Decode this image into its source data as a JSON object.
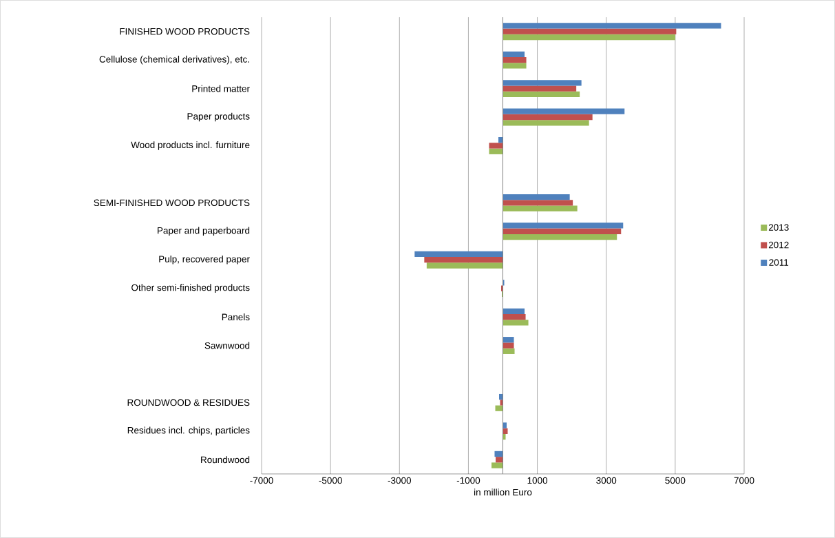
{
  "chart_data": {
    "type": "bar",
    "orientation": "horizontal",
    "xlabel": "in million Euro",
    "categories": [
      "FINISHED WOOD PRODUCTS",
      "Cellulose (chemical derivatives), etc.",
      "Printed matter",
      "Paper products",
      "Wood products incl. furniture",
      null,
      "SEMI-FINISHED WOOD PRODUCTS",
      "Paper and paperboard",
      "Pulp, recovered paper",
      "Other semi-finished products",
      "Panels",
      "Sawnwood",
      null,
      "ROUNDWOOD & RESIDUES",
      "Residues incl. chips, particles",
      "Roundwood"
    ],
    "series": [
      {
        "name": "2013",
        "color": "#9bbb59",
        "values": [
          5000,
          680,
          2230,
          2500,
          -400,
          null,
          2160,
          3310,
          -2210,
          -30,
          740,
          340,
          null,
          -220,
          80,
          -330
        ]
      },
      {
        "name": "2012",
        "color": "#c0504d",
        "values": [
          5030,
          680,
          2130,
          2600,
          -400,
          null,
          2030,
          3430,
          -2280,
          -50,
          660,
          320,
          null,
          -80,
          140,
          -210
        ]
      },
      {
        "name": "2011",
        "color": "#4f81bd",
        "values": [
          6330,
          630,
          2280,
          3530,
          -130,
          null,
          1940,
          3490,
          -2560,
          40,
          630,
          320,
          null,
          -110,
          110,
          -240
        ]
      }
    ],
    "xlim": [
      -7000,
      7000
    ],
    "xticks": [
      -7000,
      -5000,
      -3000,
      -1000,
      1000,
      3000,
      5000,
      7000
    ],
    "grid": "x",
    "legend": "right"
  }
}
